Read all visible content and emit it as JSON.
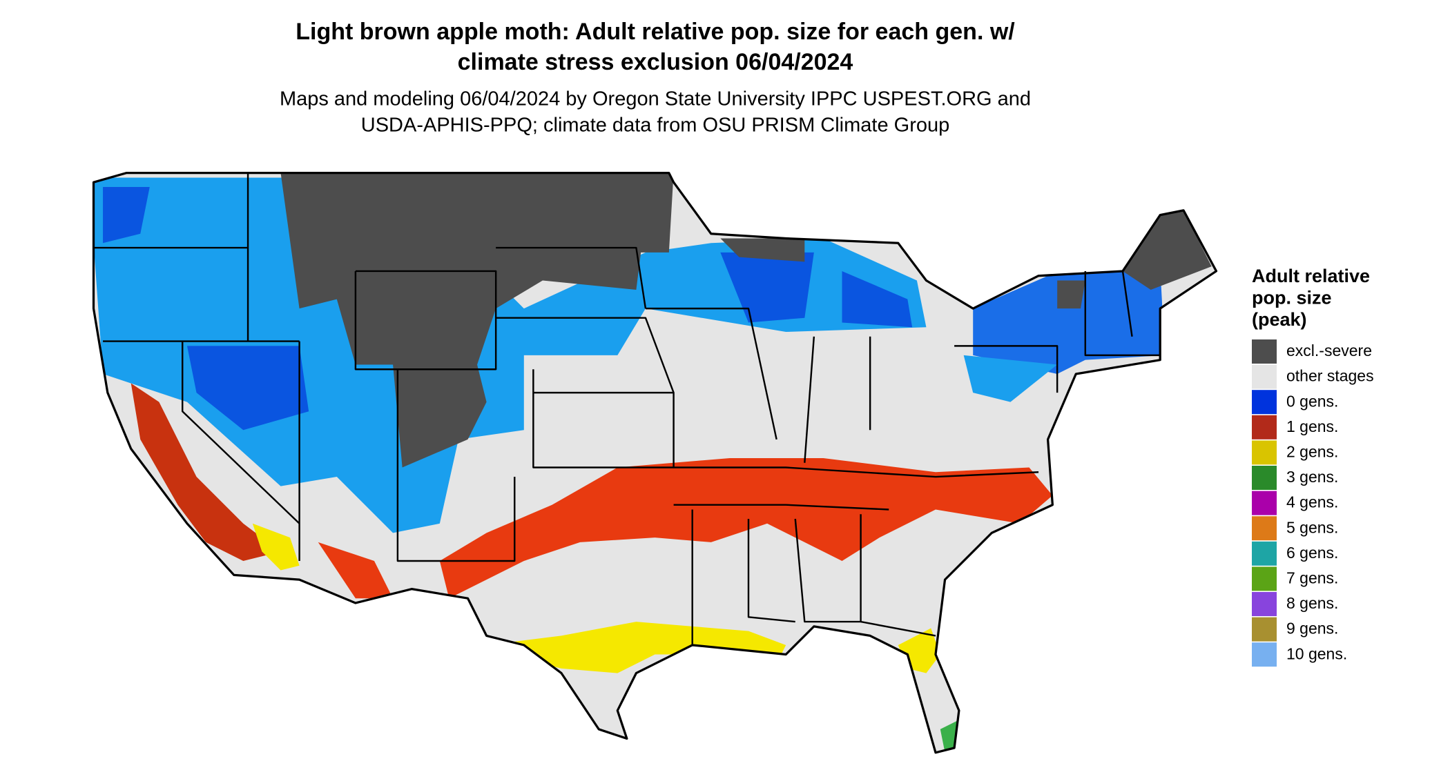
{
  "title_lines": [
    "Light brown apple moth: Adult relative pop. size for each gen. w/",
    "climate stress exclusion 06/04/2024"
  ],
  "subtitle_lines": [
    "Maps and modeling 06/04/2024 by Oregon State University IPPC USPEST.ORG and",
    "USDA-APHIS-PPQ; climate data from OSU PRISM Climate Group"
  ],
  "legend": {
    "title_lines": [
      "Adult relative",
      "pop. size",
      "(peak)"
    ],
    "items": [
      {
        "label": "excl.-severe",
        "color": "#4d4d4d"
      },
      {
        "label": "other stages",
        "color": "#e5e5e5"
      },
      {
        "label": "0 gens.",
        "color": "#0033dd"
      },
      {
        "label": "1 gens.",
        "color": "#b22a1a"
      },
      {
        "label": "2 gens.",
        "color": "#d9c400"
      },
      {
        "label": "3 gens.",
        "color": "#2a8a2a"
      },
      {
        "label": "4 gens.",
        "color": "#aa00aa"
      },
      {
        "label": "5 gens.",
        "color": "#dd7a18"
      },
      {
        "label": "6 gens.",
        "color": "#1ea5a5"
      },
      {
        "label": "7 gens.",
        "color": "#5ba416"
      },
      {
        "label": "8 gens.",
        "color": "#8844dd"
      },
      {
        "label": "9 gens.",
        "color": "#a89030"
      },
      {
        "label": "10 gens.",
        "color": "#77b0f0"
      }
    ]
  }
}
